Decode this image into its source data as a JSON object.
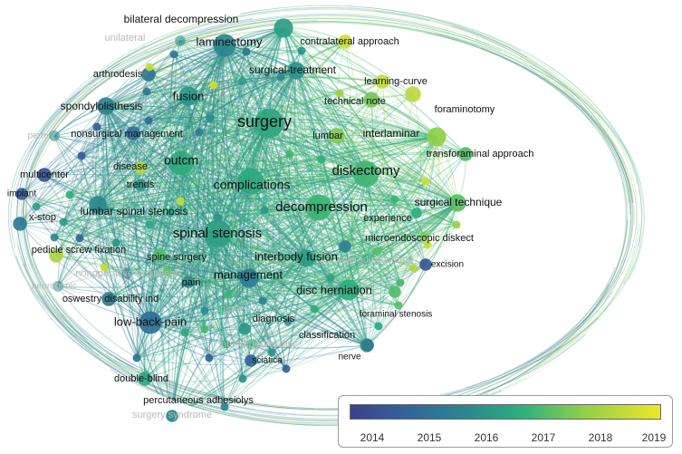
{
  "keywords": [
    {
      "id": "surgery",
      "label": "surgery",
      "year": 2016.8,
      "weight": 14,
      "size": 18
    },
    {
      "id": "complications",
      "label": "complications",
      "year": 2016.8,
      "weight": 12,
      "size": 14
    },
    {
      "id": "decompression",
      "label": "decompression",
      "year": 2017.2,
      "weight": 12,
      "size": 15
    },
    {
      "id": "spinal-stenosis",
      "label": "spinal stenosis",
      "year": 2016.6,
      "weight": 13,
      "size": 15
    },
    {
      "id": "diskectomy",
      "label": "diskectomy",
      "year": 2017.3,
      "weight": 12,
      "size": 15
    },
    {
      "id": "outcm",
      "label": "outcm",
      "year": 2016.9,
      "weight": 11,
      "size": 14
    },
    {
      "id": "laminectomy",
      "label": "laminectomy",
      "year": 2015.8,
      "weight": 10,
      "size": 13
    },
    {
      "id": "fusion",
      "label": "fusion",
      "year": 2016.3,
      "weight": 8,
      "size": 13
    },
    {
      "id": "management",
      "label": "management",
      "year": 2015.6,
      "weight": 8,
      "size": 13
    },
    {
      "id": "interbody-fusion",
      "label": "interbody fusion",
      "year": 2016.5,
      "weight": 7,
      "size": 13
    },
    {
      "id": "disc-herniation",
      "label": "disc herniation",
      "year": 2017.0,
      "weight": 9,
      "size": 13
    },
    {
      "id": "low-back-pain",
      "label": "low-back-pain",
      "year": 2015.2,
      "weight": 10,
      "size": 13
    },
    {
      "id": "spondylolisthesis",
      "label": "spondylolisthesis",
      "year": 2015.7,
      "weight": 7,
      "size": 12
    },
    {
      "id": "surgical-treatment",
      "label": "surgical-treatment",
      "year": 2016.2,
      "weight": 7,
      "size": 12
    },
    {
      "id": "interlaminar",
      "label": "interlaminar",
      "year": 2018.2,
      "weight": 8,
      "size": 12
    },
    {
      "id": "lumbar-spinal-stenosis",
      "label": "lumbar spinal stenosis",
      "year": 2015.9,
      "weight": 7,
      "size": 12
    },
    {
      "id": "surgical-technique",
      "label": "surgical technique",
      "year": 2017.6,
      "weight": 7,
      "size": 12
    },
    {
      "id": "bilateral-decompression",
      "label": "bilateral decompression",
      "year": 2016.5,
      "weight": 8,
      "size": 12
    },
    {
      "id": "technical-note",
      "label": "technical note",
      "year": 2017.9,
      "weight": 6,
      "size": 11
    },
    {
      "id": "lumbar",
      "label": "lumbar",
      "year": 2018.0,
      "weight": 6,
      "size": 11
    },
    {
      "id": "foraminotomy",
      "label": "foraminotomy",
      "year": 2018.7,
      "weight": 6,
      "size": 11
    },
    {
      "id": "transforaminal-approach",
      "label": "transforaminal approach",
      "year": 2017.5,
      "weight": 5,
      "size": 11
    },
    {
      "id": "contralateral-approach",
      "label": "contralateral approach",
      "year": 2018.9,
      "weight": 5,
      "size": 11
    },
    {
      "id": "learning-curve",
      "label": "learning-curve",
      "year": 2018.8,
      "weight": 5,
      "size": 11
    },
    {
      "id": "arthrodesis",
      "label": "arthrodesis",
      "year": 2015.4,
      "weight": 5,
      "size": 11
    },
    {
      "id": "nonsurgical-management",
      "label": "nonsurgical management",
      "year": 2015.2,
      "weight": 5,
      "size": 11
    },
    {
      "id": "multicenter",
      "label": "multicenter",
      "year": 2014.5,
      "weight": 5,
      "size": 11
    },
    {
      "id": "implant",
      "label": "implant",
      "year": 2014.8,
      "weight": 4,
      "size": 10
    },
    {
      "id": "x-stop",
      "label": "x-stop",
      "year": 2015.5,
      "weight": 5,
      "size": 11
    },
    {
      "id": "disease",
      "label": "disease",
      "year": 2018.6,
      "weight": 4,
      "size": 11
    },
    {
      "id": "trends",
      "label": "trends",
      "year": 2016.3,
      "weight": 4,
      "size": 11
    },
    {
      "id": "pedicle-screw-fixation",
      "label": "pedicle screw fixation",
      "year": 2018.5,
      "weight": 5,
      "size": 11
    },
    {
      "id": "spine-surgery",
      "label": "spine surgery",
      "year": 2017.5,
      "weight": 5,
      "size": 11
    },
    {
      "id": "pain",
      "label": "pain",
      "year": 2016.0,
      "weight": 4,
      "size": 11
    },
    {
      "id": "oswestry",
      "label": "oswestry disability ind",
      "year": 2015.5,
      "weight": 5,
      "size": 11
    },
    {
      "id": "diagnosis",
      "label": "diagnosis",
      "year": 2016.3,
      "weight": 4,
      "size": 11
    },
    {
      "id": "classification",
      "label": "classification",
      "year": 2016.6,
      "weight": 5,
      "size": 11
    },
    {
      "id": "sciatica",
      "label": "sciatica",
      "year": 2014.9,
      "weight": 4,
      "size": 10
    },
    {
      "id": "nerve",
      "label": "nerve",
      "year": 2015.5,
      "weight": 4,
      "size": 10
    },
    {
      "id": "double-blind",
      "label": "double-blind",
      "year": 2016.8,
      "weight": 5,
      "size": 11
    },
    {
      "id": "percutaneous-adhesiolys",
      "label": "percutaneous adhesiolys",
      "year": 2016.0,
      "weight": 4,
      "size": 11
    },
    {
      "id": "foraminal-stenosis",
      "label": "foraminal stenosis",
      "year": 2017.5,
      "weight": 4,
      "size": 10
    },
    {
      "id": "microendoscopic-diskect",
      "label": "microendoscopic diskect",
      "year": 2015.7,
      "weight": 4,
      "size": 11
    },
    {
      "id": "excision",
      "label": "excision",
      "year": 2014.5,
      "weight": 4,
      "size": 10
    },
    {
      "id": "experience",
      "label": "experience",
      "year": 2017.0,
      "weight": 3,
      "size": 11
    },
    {
      "id": "unilateral",
      "label": "unilateral",
      "year": 2016.0,
      "weight": 3,
      "size": 11
    },
    {
      "id": "nonoperative-treatment",
      "label": "nonoperative treatment",
      "year": 2015.5,
      "weight": 3,
      "size": 11
    },
    {
      "id": "neurogenic",
      "label": "neurogenic",
      "year": 2016.0,
      "weight": 3,
      "size": 10
    },
    {
      "id": "surgery-syndrome",
      "label": "surgery syndrome",
      "year": 2016.0,
      "weight": 3,
      "size": 11
    },
    {
      "id": "injury",
      "label": "injury",
      "year": 2017.0,
      "weight": 3,
      "size": 11
    },
    {
      "id": "intervertebral-disc",
      "label": "intervertebral disc",
      "year": 2017.0,
      "weight": 3,
      "size": 11
    },
    {
      "id": "perfo",
      "label": "perfo",
      "year": 2016.0,
      "weight": 3,
      "size": 10
    },
    {
      "id": "microdiscectomy",
      "label": "microdiscectomy",
      "year": 2017.0,
      "weight": 3,
      "size": 11
    }
  ],
  "legend": {
    "ticks": [
      "2014",
      "2015",
      "2016",
      "2017",
      "2018",
      "2019"
    ],
    "range": [
      2013.8,
      2019.3
    ],
    "colors": [
      "#3b3f8c",
      "#33649a",
      "#2b8c8e",
      "#2fb17b",
      "#8fcf4a",
      "#f0e52a"
    ]
  }
}
